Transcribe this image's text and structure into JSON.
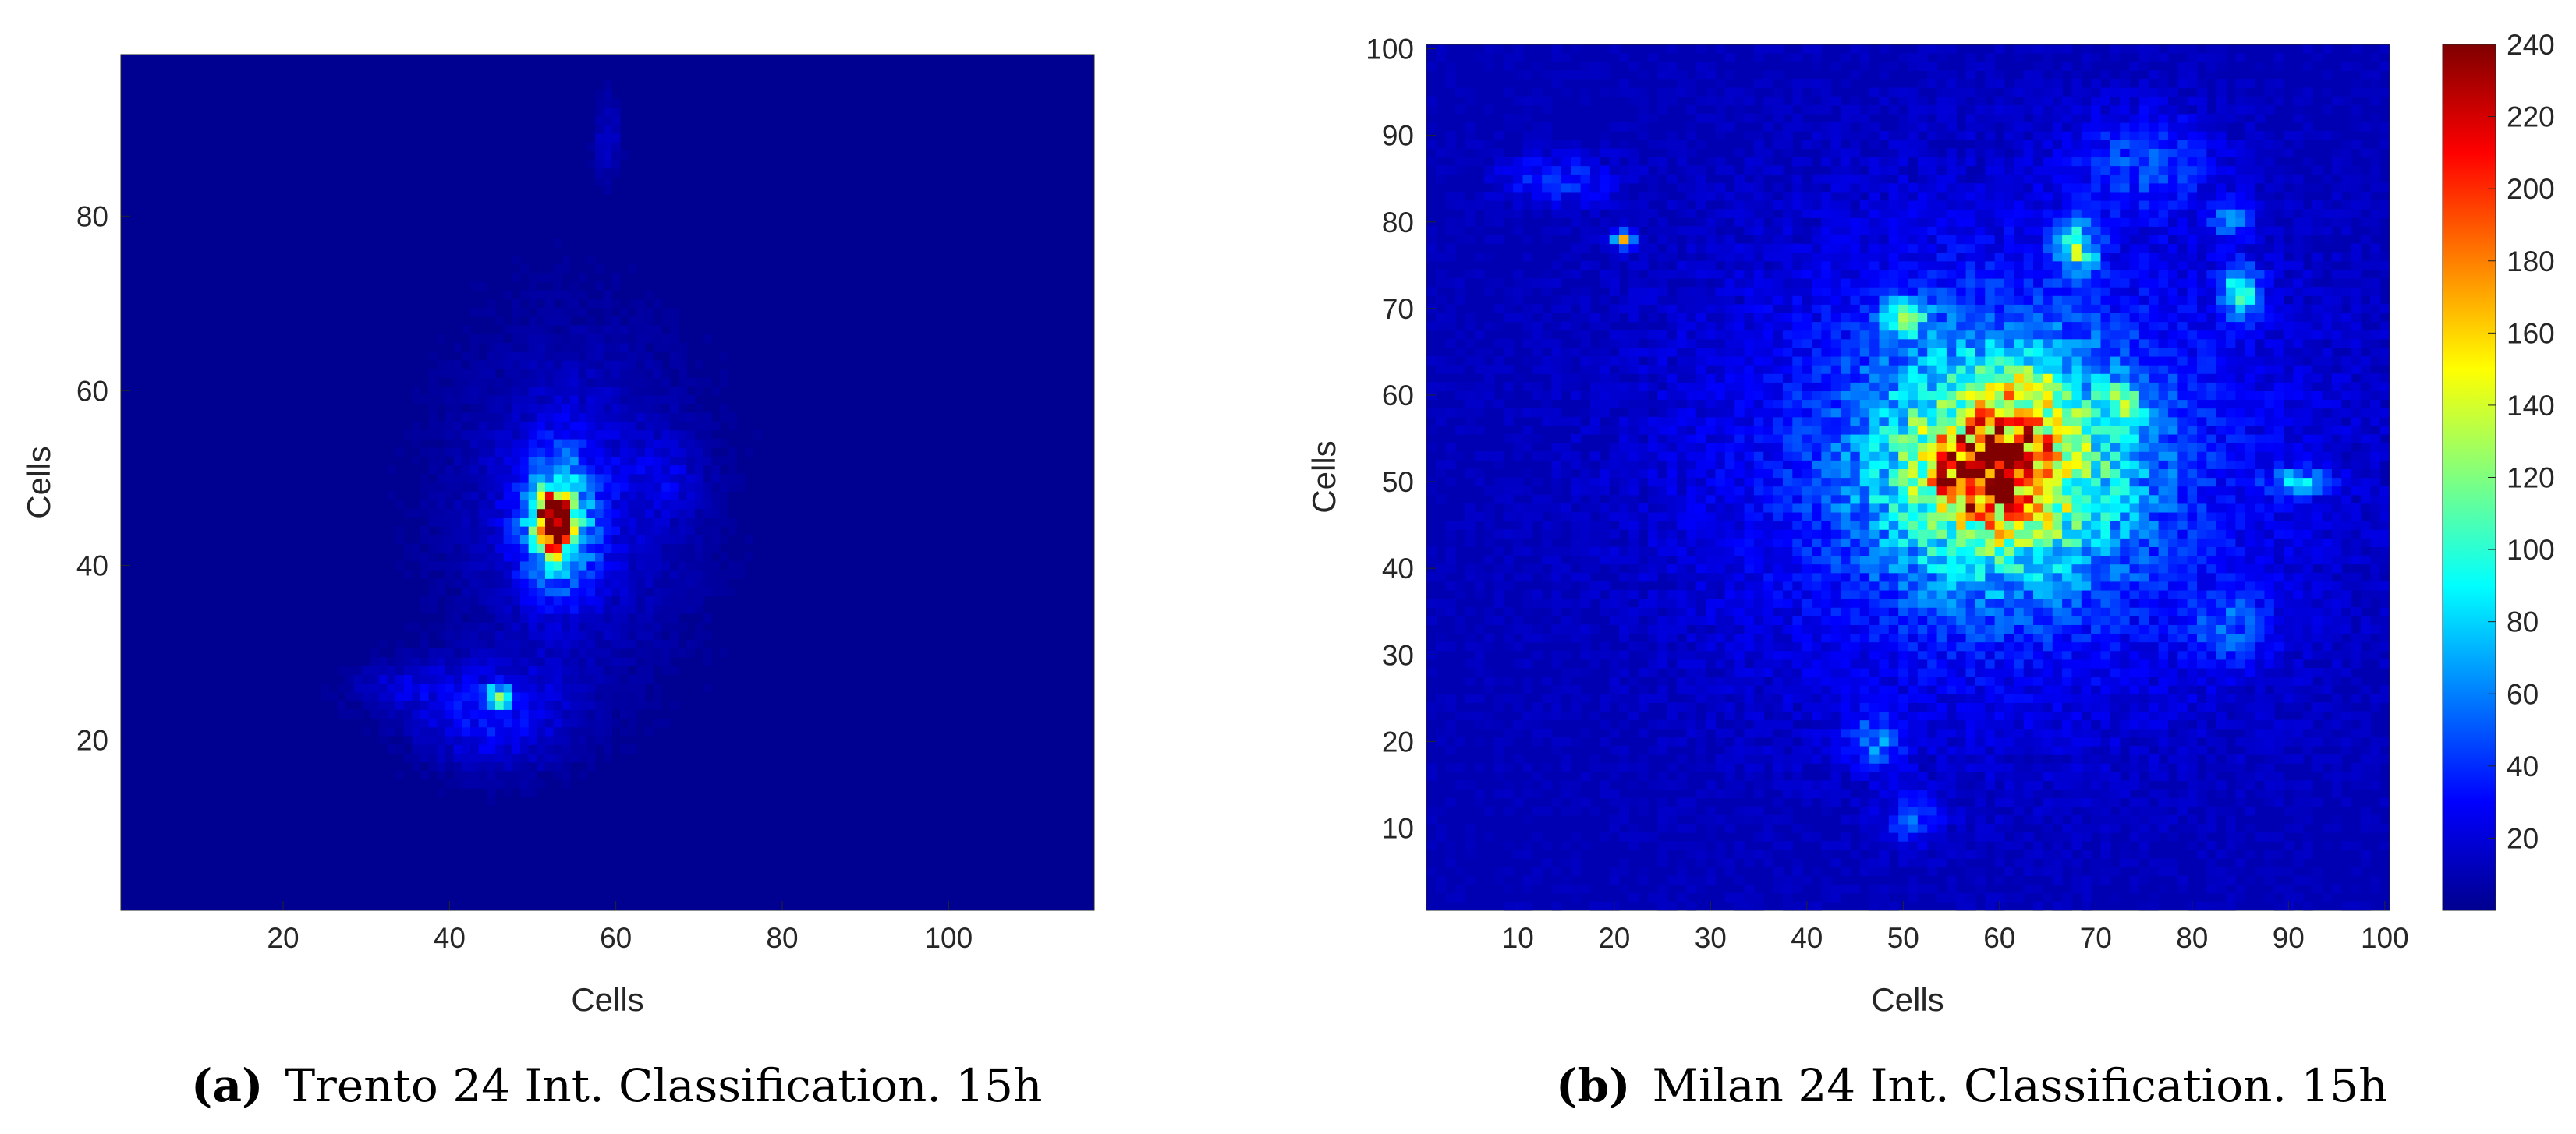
{
  "chart_data": [
    {
      "type": "heatmap",
      "subfigure_label": "a",
      "caption": "Trento 24 Int. Classification. 15h",
      "xlabel": "Cells",
      "ylabel": "Cells",
      "xlim": [
        0.5,
        117.5
      ],
      "ylim": [
        0.5,
        98.5
      ],
      "xticks": [
        20,
        40,
        60,
        80,
        100
      ],
      "yticks": [
        20,
        40,
        60,
        80
      ],
      "colormap": "jet",
      "clim": [
        0,
        240
      ],
      "background_value": 4,
      "hotspots": [
        {
          "x": 52.5,
          "y": 45,
          "value": 235,
          "sigma_x": 1.3,
          "sigma_y": 2.0
        },
        {
          "x": 53,
          "y": 45,
          "value": 90,
          "sigma_x": 3,
          "sigma_y": 5
        },
        {
          "x": 46,
          "y": 25,
          "value": 120,
          "sigma_x": 1.0,
          "sigma_y": 0.8
        },
        {
          "x": 45,
          "y": 23,
          "value": 28,
          "sigma_x": 6,
          "sigma_y": 4
        },
        {
          "x": 55,
          "y": 47,
          "value": 20,
          "sigma_x": 9,
          "sigma_y": 12
        },
        {
          "x": 34,
          "y": 26,
          "value": 14,
          "sigma_x": 4,
          "sigma_y": 2
        },
        {
          "x": 59,
          "y": 89,
          "value": 14,
          "sigma_x": 1,
          "sigma_y": 3
        },
        {
          "x": 66,
          "y": 50,
          "value": 12,
          "sigma_x": 3,
          "sigma_y": 3
        }
      ]
    },
    {
      "type": "heatmap",
      "subfigure_label": "b",
      "caption": "Milan 24 Int. Classification. 15h",
      "xlabel": "Cells",
      "ylabel": "Cells",
      "xlim": [
        0.5,
        100.5
      ],
      "ylim": [
        0.5,
        100.5
      ],
      "xticks": [
        10,
        20,
        30,
        40,
        50,
        60,
        70,
        80,
        90,
        100
      ],
      "yticks": [
        10,
        20,
        30,
        40,
        50,
        60,
        70,
        80,
        90,
        100
      ],
      "colormap": "jet",
      "clim": [
        0,
        240
      ],
      "colorbar_ticks": [
        20,
        40,
        60,
        80,
        100,
        120,
        140,
        160,
        180,
        200,
        220,
        240
      ],
      "background_value": 12,
      "hotspots": [
        {
          "x": 60,
          "y": 52,
          "value": 110,
          "sigma_x": 9,
          "sigma_y": 9
        },
        {
          "x": 60,
          "y": 52,
          "value": 85,
          "sigma_x": 4,
          "sigma_y": 4
        },
        {
          "x": 56,
          "y": 50,
          "value": 60,
          "sigma_x": 2,
          "sigma_y": 2
        },
        {
          "x": 63,
          "y": 61,
          "value": 45,
          "sigma_x": 2,
          "sigma_y": 1.5
        },
        {
          "x": 60,
          "y": 45,
          "value": 50,
          "sigma_x": 1,
          "sigma_y": 1
        },
        {
          "x": 60,
          "y": 52,
          "value": 30,
          "sigma_x": 22,
          "sigma_y": 20
        },
        {
          "x": 68,
          "y": 77,
          "value": 90,
          "sigma_x": 1.5,
          "sigma_y": 2
        },
        {
          "x": 21,
          "y": 78,
          "value": 130,
          "sigma_x": 0.7,
          "sigma_y": 0.7
        },
        {
          "x": 85,
          "y": 72,
          "value": 70,
          "sigma_x": 1.5,
          "sigma_y": 2
        },
        {
          "x": 91,
          "y": 50,
          "value": 60,
          "sigma_x": 2,
          "sigma_y": 1
        },
        {
          "x": 50,
          "y": 69,
          "value": 60,
          "sigma_x": 2,
          "sigma_y": 1.5
        },
        {
          "x": 73,
          "y": 59,
          "value": 70,
          "sigma_x": 1.5,
          "sigma_y": 1.5
        },
        {
          "x": 47,
          "y": 20,
          "value": 40,
          "sigma_x": 2,
          "sigma_y": 2
        },
        {
          "x": 51,
          "y": 11,
          "value": 30,
          "sigma_x": 2,
          "sigma_y": 2
        },
        {
          "x": 84,
          "y": 33,
          "value": 30,
          "sigma_x": 3,
          "sigma_y": 3
        },
        {
          "x": 75,
          "y": 87,
          "value": 28,
          "sigma_x": 5,
          "sigma_y": 4
        },
        {
          "x": 14,
          "y": 85,
          "value": 26,
          "sigma_x": 4,
          "sigma_y": 2
        },
        {
          "x": 84,
          "y": 80,
          "value": 40,
          "sigma_x": 1.5,
          "sigma_y": 1.5
        }
      ]
    }
  ]
}
